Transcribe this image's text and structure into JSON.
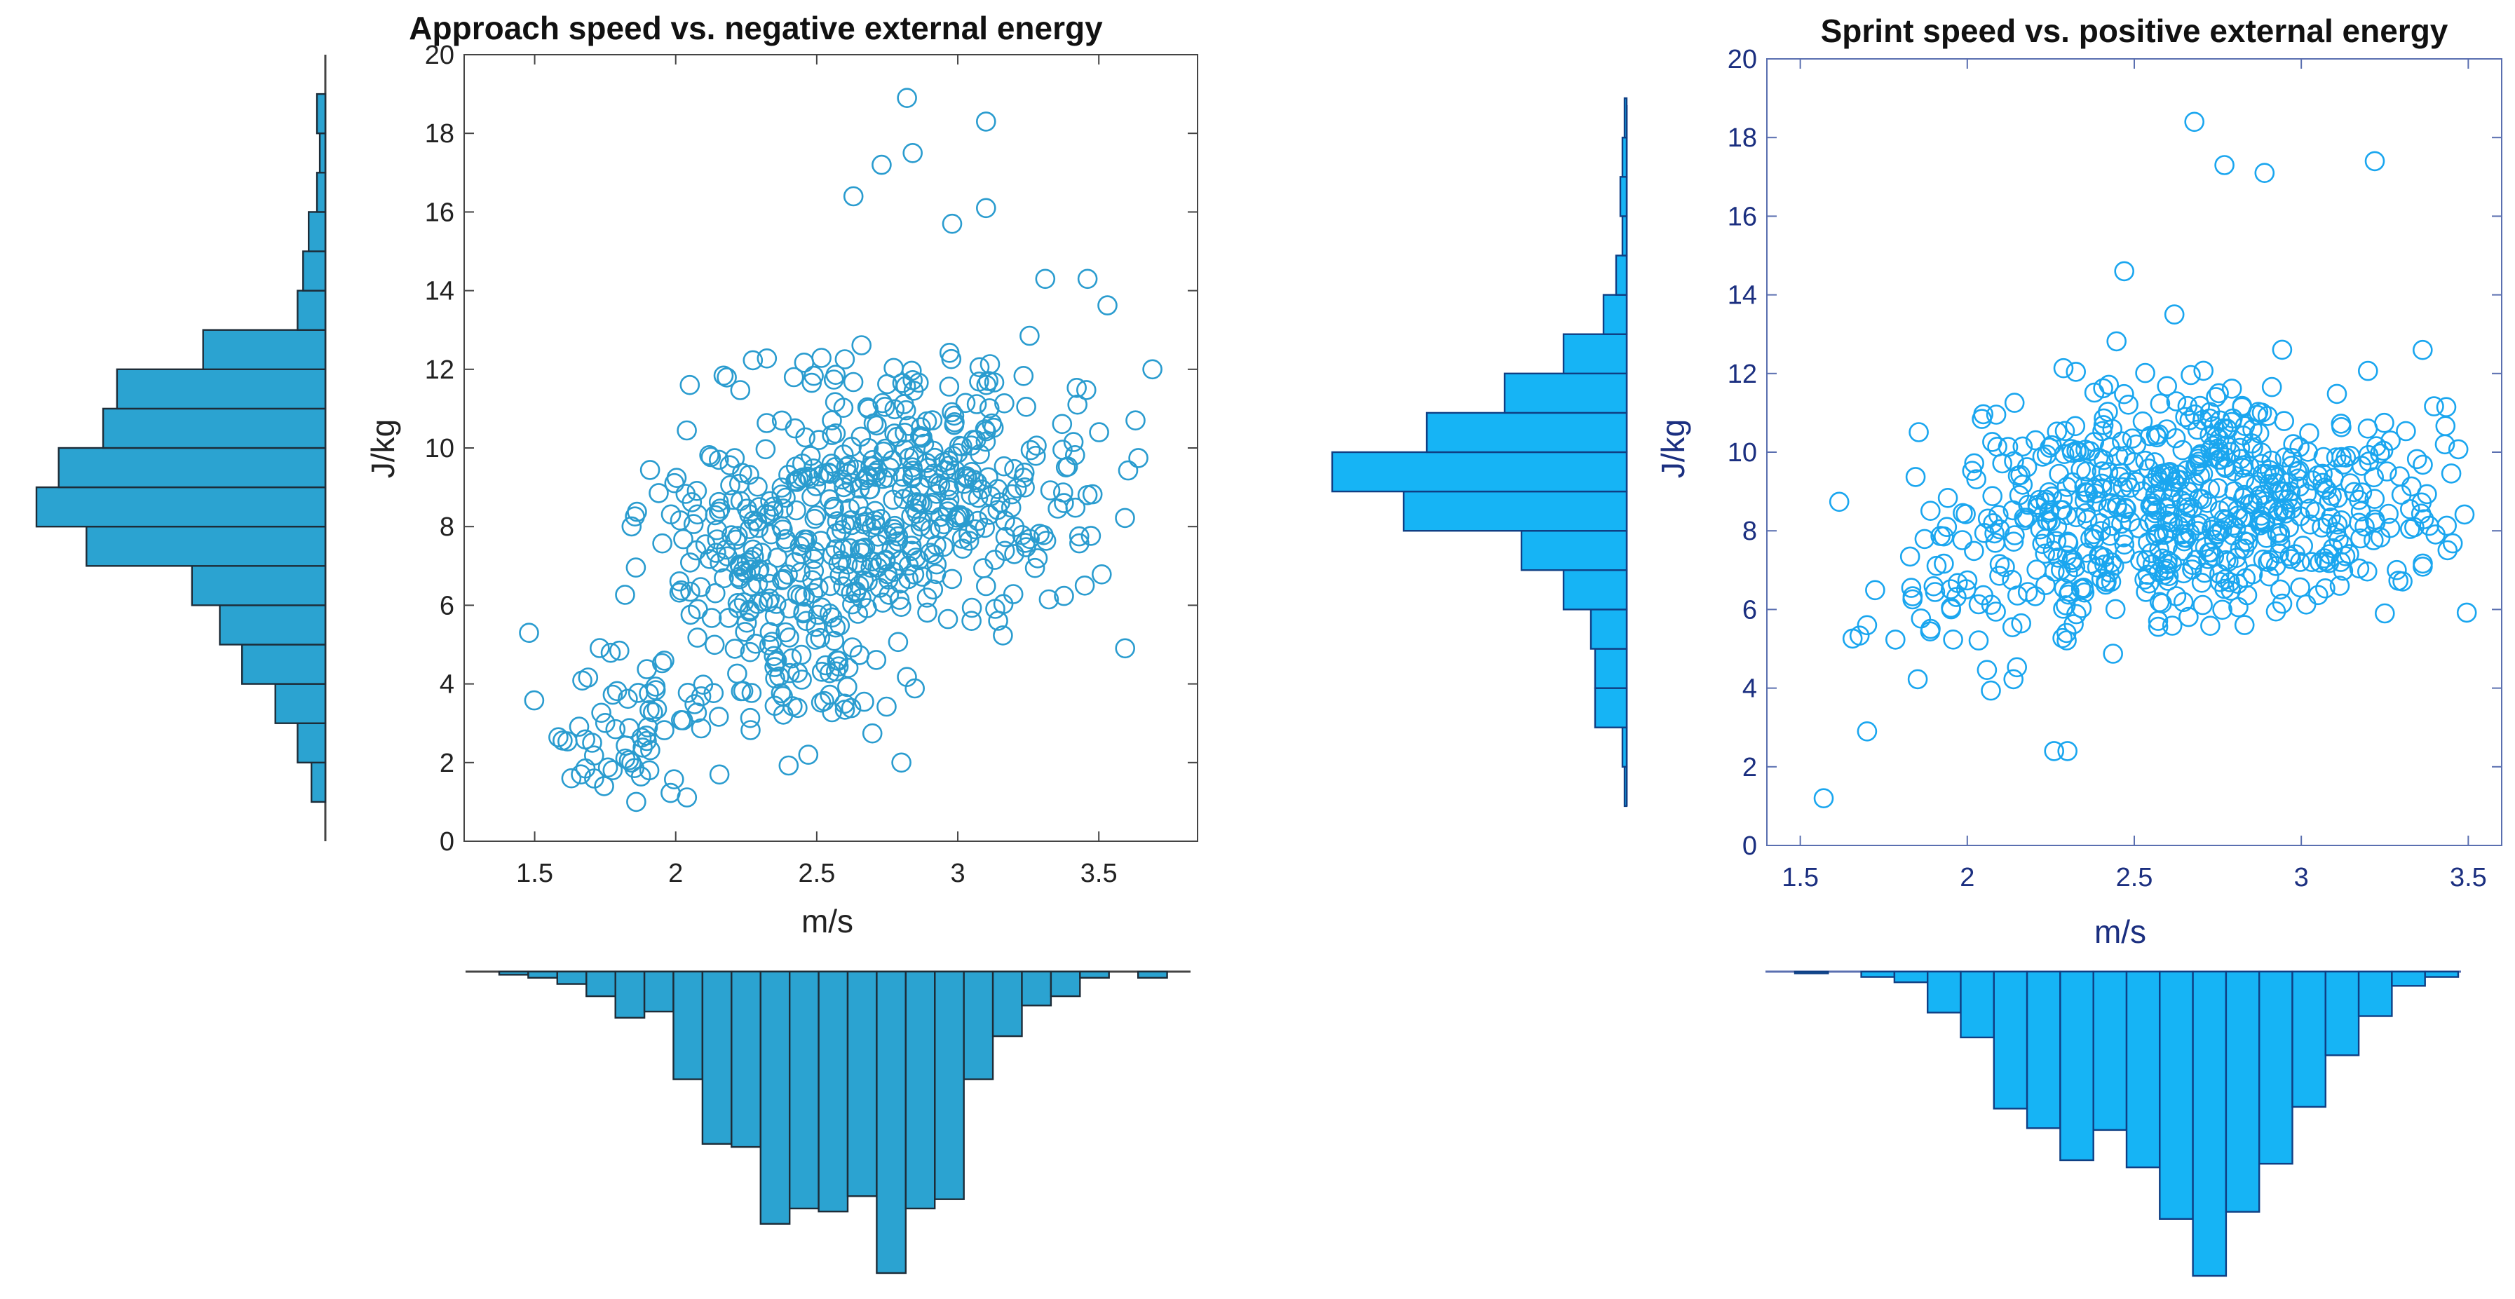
{
  "colors": {
    "left_marker": "#2a9ccf",
    "left_bar_fill": "#2ba3d1",
    "left_axis": "#444444",
    "left_text": "#222222",
    "right_marker": "#1aa6ef",
    "right_bar_fill": "#16b4f5",
    "right_bar_edge": "#0f3f84",
    "right_axis": "#5a6fb0",
    "right_text": "#1b2f80",
    "title_text": "#111111"
  },
  "chart_data": [
    {
      "type": "scatter",
      "title": "Approach speed vs. negative external energy",
      "xlabel": "m/s",
      "ylabel": "J/kg",
      "xlim": [
        1.25,
        3.85
      ],
      "ylim": [
        0,
        20
      ],
      "xticks": [
        "1.5",
        "2",
        "2.5",
        "3",
        "3.5"
      ],
      "yticks": [
        "0",
        "2",
        "4",
        "6",
        "8",
        "10",
        "12",
        "14",
        "16",
        "18",
        "20"
      ],
      "marker": "open-circle",
      "n_points": 640,
      "seed": 11,
      "highlighted_points": [
        [
          1.48,
          5.3
        ],
        [
          1.63,
          1.6
        ],
        [
          1.86,
          1.0
        ],
        [
          2.05,
          11.6
        ],
        [
          2.82,
          18.9
        ],
        [
          3.1,
          18.3
        ],
        [
          3.69,
          12.0
        ],
        [
          3.63,
          10.7
        ],
        [
          3.46,
          14.3
        ],
        [
          3.31,
          14.3
        ],
        [
          2.63,
          16.4
        ],
        [
          2.84,
          17.5
        ],
        [
          2.73,
          17.2
        ],
        [
          3.1,
          16.1
        ],
        [
          2.98,
          15.7
        ],
        [
          3.45,
          6.5
        ],
        [
          3.46,
          8.8
        ],
        [
          2.8,
          2.0
        ],
        [
          2.47,
          2.2
        ]
      ],
      "y_histogram": {
        "bin_edges": [
          1,
          2,
          3,
          4,
          5,
          6,
          7,
          8,
          9,
          10,
          11,
          12,
          13,
          14,
          15,
          16,
          17,
          18,
          19
        ],
        "counts": [
          5,
          10,
          18,
          30,
          38,
          48,
          86,
          104,
          96,
          80,
          75,
          44,
          10,
          8,
          6,
          3,
          2,
          3
        ]
      },
      "x_histogram": {
        "bin_edges": [
          1.4,
          1.5,
          1.6,
          1.7,
          1.8,
          1.9,
          2.0,
          2.1,
          2.2,
          2.3,
          2.4,
          2.5,
          2.6,
          2.7,
          2.8,
          2.9,
          3.0,
          3.1,
          3.2,
          3.3,
          3.4,
          3.5,
          3.6,
          3.7,
          3.8
        ],
        "counts": [
          1,
          2,
          4,
          8,
          15,
          13,
          35,
          56,
          57,
          82,
          77,
          78,
          73,
          98,
          77,
          74,
          35,
          21,
          11,
          8,
          2,
          0,
          2,
          0
        ]
      }
    },
    {
      "type": "scatter",
      "title": "Sprint speed vs. positive external energy",
      "xlabel": "m/s",
      "ylabel": "J/kg",
      "xlim": [
        1.4,
        3.6
      ],
      "ylim": [
        0,
        20
      ],
      "xticks": [
        "1.5",
        "2",
        "2.5",
        "3",
        "3.5"
      ],
      "yticks": [
        "0",
        "2",
        "4",
        "6",
        "8",
        "10",
        "12",
        "14",
        "16",
        "18",
        "20"
      ],
      "marker": "open-circle",
      "n_points": 650,
      "seed": 29,
      "highlighted_points": [
        [
          1.57,
          1.2
        ],
        [
          1.7,
          2.9
        ],
        [
          1.7,
          5.6
        ],
        [
          2.68,
          18.4
        ],
        [
          2.89,
          17.1
        ],
        [
          3.22,
          17.4
        ],
        [
          2.77,
          17.3
        ],
        [
          3.25,
          5.9
        ],
        [
          2.26,
          2.4
        ],
        [
          2.3,
          2.4
        ],
        [
          3.43,
          10.2
        ],
        [
          2.47,
          14.6
        ],
        [
          2.62,
          13.5
        ]
      ],
      "y_histogram": {
        "bin_edges": [
          1,
          2,
          3,
          4,
          5,
          6,
          7,
          8,
          9,
          10,
          11,
          12,
          13,
          14,
          15,
          16,
          17,
          18,
          19
        ],
        "counts": [
          1,
          2,
          15,
          15,
          17,
          30,
          50,
          106,
          140,
          95,
          58,
          30,
          11,
          5,
          2,
          3,
          2,
          1
        ]
      },
      "x_histogram": {
        "bin_edges": [
          1.5,
          1.6,
          1.7,
          1.8,
          1.9,
          2.0,
          2.1,
          2.2,
          2.3,
          2.4,
          2.5,
          2.6,
          2.7,
          2.8,
          2.9,
          3.0,
          3.1,
          3.2,
          3.3,
          3.4,
          3.5
        ],
        "counts": [
          1,
          0,
          3,
          6,
          23,
          37,
          77,
          88,
          106,
          89,
          110,
          139,
          171,
          135,
          108,
          76,
          47,
          25,
          8,
          3
        ]
      }
    }
  ]
}
